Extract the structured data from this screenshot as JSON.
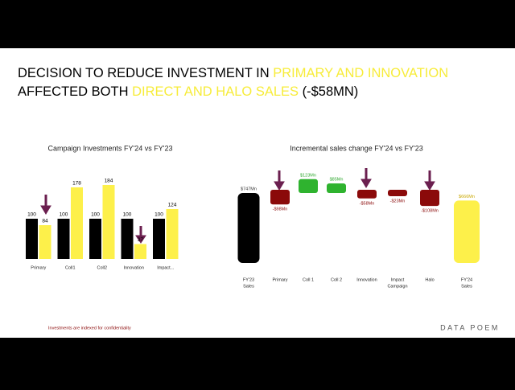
{
  "title_lines": [
    [
      {
        "text": "DECISION TO REDUCE INVESTMENT IN ",
        "highlight": false
      },
      {
        "text": "PRIMARY AND INNOVATION",
        "highlight": true
      }
    ],
    [
      {
        "text": "AFFECTED BOTH ",
        "highlight": false
      },
      {
        "text": "DIRECT AND HALO SALES",
        "highlight": true
      },
      {
        "text": " (-$58MN)",
        "highlight": false
      }
    ]
  ],
  "highlight_color": "#f7ec3a",
  "footnote": "Investments are indexed for confidentiality",
  "logo": "DATA POEM",
  "chart_data": [
    {
      "type": "grouped_bar",
      "title": "Campaign Investments FY'24 vs FY'23",
      "categories": [
        "Primary",
        "Coll1",
        "Coll2",
        "Innovation",
        "Impact..."
      ],
      "series": [
        {
          "color": "#000000",
          "values": [
            100,
            100,
            100,
            100,
            100
          ]
        },
        {
          "color": "#fdf04a",
          "values": [
            84,
            178,
            184,
            37,
            124
          ]
        }
      ]
    },
    {
      "type": "waterfall",
      "title": "Incremental sales change FY'24 vs FY'23",
      "categories": [
        [
          "FY'23",
          "Sales"
        ],
        [
          "Primary"
        ],
        [
          "Coll 1"
        ],
        [
          "Coll  2"
        ],
        [
          "Innovation"
        ],
        [
          "Impact",
          "Campaign"
        ],
        [
          "Halo"
        ],
        [
          "FY'24",
          "Sales"
        ]
      ],
      "values": [
        747,
        -98,
        123,
        85,
        -58,
        -23,
        -108,
        666
      ],
      "value_labels": [
        "$747Mn",
        "-$98Mn",
        "$123Mn",
        "$85Mn",
        "-$58Mn",
        "-$23Mn",
        "-$108Mn",
        "$666Mn"
      ],
      "colors": [
        "#000000",
        "#8b0a0a",
        "#2fb32f",
        "#2fb32f",
        "#8b0a0a",
        "#8b0a0a",
        "#8b0a0a",
        "#fdf04a"
      ],
      "label_colors": [
        "#333333",
        "#8b0a0a",
        "#2fa82f",
        "#2fa82f",
        "#8b0a0a",
        "#8b0a0a",
        "#8b0a0a",
        "#c9a800"
      ]
    }
  ]
}
